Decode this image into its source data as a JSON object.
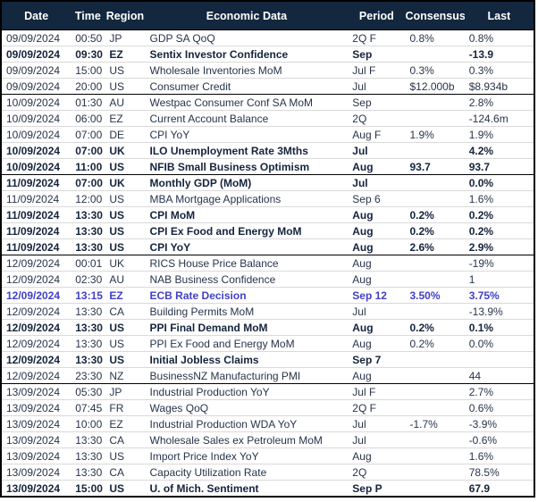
{
  "colors": {
    "header_bg": "#13273E",
    "header_text": "#FFFFFF",
    "row_text": "#27344A",
    "bold_row_text": "#14243C",
    "highlight_row_text": "#4141C8",
    "group_divider": "#000000",
    "row_divider": "#D9D9D9",
    "outer_border": "#000000"
  },
  "table": {
    "columns": [
      {
        "key": "date",
        "label": "Date"
      },
      {
        "key": "time",
        "label": "Time"
      },
      {
        "key": "region",
        "label": "Region"
      },
      {
        "key": "event",
        "label": "Economic Data"
      },
      {
        "key": "period",
        "label": "Period"
      },
      {
        "key": "consensus",
        "label": "Consensus"
      },
      {
        "key": "last",
        "label": "Last"
      }
    ],
    "rows": [
      {
        "date": "09/09/2024",
        "time": "00:50",
        "region": "JP",
        "event": "GDP SA QoQ",
        "period": "2Q F",
        "consensus": "0.8%",
        "last": "0.8%",
        "style": "normal",
        "group_start": false
      },
      {
        "date": "09/09/2024",
        "time": "09:30",
        "region": "EZ",
        "event": "Sentix Investor Confidence",
        "period": "Sep",
        "consensus": "",
        "last": "-13.9",
        "style": "bold",
        "group_start": false
      },
      {
        "date": "09/09/2024",
        "time": "15:00",
        "region": "US",
        "event": "Wholesale Inventories MoM",
        "period": "Jul F",
        "consensus": "0.3%",
        "last": "0.3%",
        "style": "normal",
        "group_start": false
      },
      {
        "date": "09/09/2024",
        "time": "20:00",
        "region": "US",
        "event": "Consumer Credit",
        "period": "Jul",
        "consensus": "$12.000b",
        "last": "$8.934b",
        "style": "normal",
        "group_start": false
      },
      {
        "date": "10/09/2024",
        "time": "01:30",
        "region": "AU",
        "event": "Westpac Consumer Conf SA MoM",
        "period": "Sep",
        "consensus": "",
        "last": "2.8%",
        "style": "normal",
        "group_start": true
      },
      {
        "date": "10/09/2024",
        "time": "06:00",
        "region": "EZ",
        "event": "Current Account Balance",
        "period": "2Q",
        "consensus": "",
        "last": "-124.6m",
        "style": "normal",
        "group_start": false
      },
      {
        "date": "10/09/2024",
        "time": "07:00",
        "region": "DE",
        "event": "CPI YoY",
        "period": "Aug F",
        "consensus": "1.9%",
        "last": "1.9%",
        "style": "normal",
        "group_start": false
      },
      {
        "date": "10/09/2024",
        "time": "07:00",
        "region": "UK",
        "event": "ILO Unemployment Rate 3Mths",
        "period": "Jul",
        "consensus": "",
        "last": "4.2%",
        "style": "bold",
        "group_start": false
      },
      {
        "date": "10/09/2024",
        "time": "11:00",
        "region": "US",
        "event": "NFIB Small Business Optimism",
        "period": "Aug",
        "consensus": "93.7",
        "last": "93.7",
        "style": "bold",
        "group_start": false
      },
      {
        "date": "11/09/2024",
        "time": "07:00",
        "region": "UK",
        "event": "Monthly GDP (MoM)",
        "period": "Jul",
        "consensus": "",
        "last": "0.0%",
        "style": "bold",
        "group_start": true
      },
      {
        "date": "11/09/2024",
        "time": "12:00",
        "region": "US",
        "event": "MBA Mortgage Applications",
        "period": "Sep 6",
        "consensus": "",
        "last": "1.6%",
        "style": "normal",
        "group_start": false
      },
      {
        "date": "11/09/2024",
        "time": "13:30",
        "region": "US",
        "event": "CPI MoM",
        "period": "Aug",
        "consensus": "0.2%",
        "last": "0.2%",
        "style": "bold",
        "group_start": false
      },
      {
        "date": "11/09/2024",
        "time": "13:30",
        "region": "US",
        "event": "CPI Ex Food and Energy MoM",
        "period": "Aug",
        "consensus": "0.2%",
        "last": "0.2%",
        "style": "bold",
        "group_start": false
      },
      {
        "date": "11/09/2024",
        "time": "13:30",
        "region": "US",
        "event": "CPI YoY",
        "period": "Aug",
        "consensus": "2.6%",
        "last": "2.9%",
        "style": "bold",
        "group_start": false
      },
      {
        "date": "12/09/2024",
        "time": "00:01",
        "region": "UK",
        "event": "RICS House Price Balance",
        "period": "Aug",
        "consensus": "",
        "last": "-19%",
        "style": "normal",
        "group_start": true
      },
      {
        "date": "12/09/2024",
        "time": "02:30",
        "region": "AU",
        "event": "NAB Business Confidence",
        "period": "Aug",
        "consensus": "",
        "last": "1",
        "style": "normal",
        "group_start": false
      },
      {
        "date": "12/09/2024",
        "time": "13:15",
        "region": "EZ",
        "event": "ECB Rate Decision",
        "period": "Sep 12",
        "consensus": "3.50%",
        "last": "3.75%",
        "style": "highlight",
        "group_start": false
      },
      {
        "date": "12/09/2024",
        "time": "13:30",
        "region": "CA",
        "event": "Building Permits MoM",
        "period": "Jul",
        "consensus": "",
        "last": "-13.9%",
        "style": "normal",
        "group_start": false
      },
      {
        "date": "12/09/2024",
        "time": "13:30",
        "region": "US",
        "event": "PPI Final Demand MoM",
        "period": "Aug",
        "consensus": "0.2%",
        "last": "0.1%",
        "style": "bold",
        "group_start": false
      },
      {
        "date": "12/09/2024",
        "time": "13:30",
        "region": "US",
        "event": "PPI Ex Food and Energy MoM",
        "period": "Aug",
        "consensus": "0.2%",
        "last": "0.0%",
        "style": "normal",
        "group_start": false
      },
      {
        "date": "12/09/2024",
        "time": "13:30",
        "region": "US",
        "event": "Initial Jobless Claims",
        "period": "Sep 7",
        "consensus": "",
        "last": "",
        "style": "bold",
        "group_start": false
      },
      {
        "date": "12/09/2024",
        "time": "23:30",
        "region": "NZ",
        "event": "BusinessNZ Manufacturing PMI",
        "period": "Aug",
        "consensus": "",
        "last": "44",
        "style": "normal",
        "group_start": false
      },
      {
        "date": "13/09/2024",
        "time": "05:30",
        "region": "JP",
        "event": "Industrial Production YoY",
        "period": "Jul F",
        "consensus": "",
        "last": "2.7%",
        "style": "normal",
        "group_start": true
      },
      {
        "date": "13/09/2024",
        "time": "07:45",
        "region": "FR",
        "event": "Wages QoQ",
        "period": "2Q F",
        "consensus": "",
        "last": "0.6%",
        "style": "normal",
        "group_start": false
      },
      {
        "date": "13/09/2024",
        "time": "10:00",
        "region": "EZ",
        "event": "Industrial Production WDA YoY",
        "period": "Jul",
        "consensus": "-1.7%",
        "last": "-3.9%",
        "style": "normal",
        "group_start": false
      },
      {
        "date": "13/09/2024",
        "time": "13:30",
        "region": "CA",
        "event": "Wholesale Sales ex Petroleum MoM",
        "period": "Jul",
        "consensus": "",
        "last": "-0.6%",
        "style": "normal",
        "group_start": false
      },
      {
        "date": "13/09/2024",
        "time": "13:30",
        "region": "US",
        "event": "Import Price Index YoY",
        "period": "Aug",
        "consensus": "",
        "last": "1.6%",
        "style": "normal",
        "group_start": false
      },
      {
        "date": "13/09/2024",
        "time": "13:30",
        "region": "CA",
        "event": "Capacity Utilization Rate",
        "period": "2Q",
        "consensus": "",
        "last": "78.5%",
        "style": "normal",
        "group_start": false
      },
      {
        "date": "13/09/2024",
        "time": "15:00",
        "region": "US",
        "event": "U. of Mich. Sentiment",
        "period": "Sep P",
        "consensus": "",
        "last": "67.9",
        "style": "bold",
        "group_start": false
      }
    ]
  }
}
